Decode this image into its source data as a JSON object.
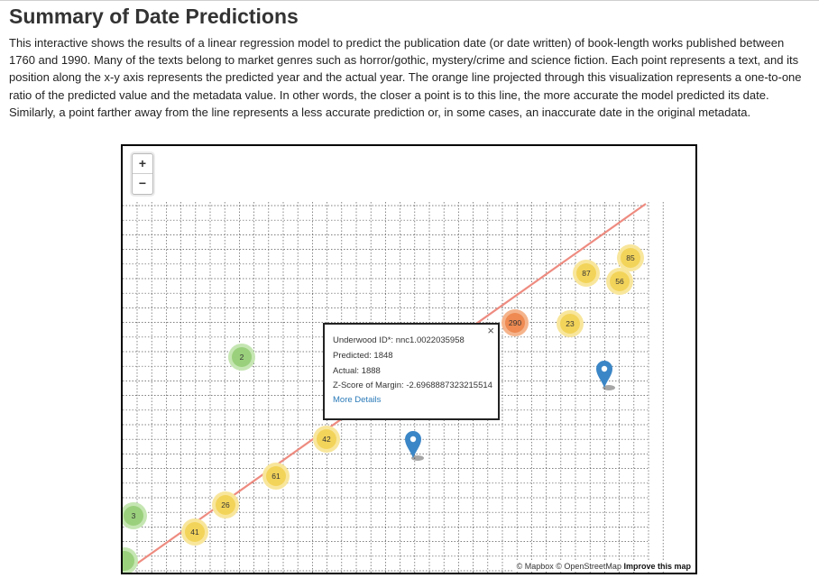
{
  "header": {
    "title": "Summary of Date Predictions",
    "intro": "This interactive shows the results of a linear regression model to predict the publication date (or date written) of book-length works published between 1760 and 1990. Many of the texts belong to market genres such as horror/gothic, mystery/crime and science fiction. Each point represents a text, and its position along the x-y axis represents the predicted year and the actual year. The orange line projected through this visualization represents a one-to-one ratio of the predicted value and the metadata value. In other words, the closer a point is to this line, the more accurate the model predicted its date. Similarly, a point farther away from the line represents a less accurate prediction or, in some cases, an inaccurate date in the original metadata."
  },
  "map": {
    "zoom_in_label": "+",
    "zoom_out_label": "−",
    "line_color": "#ee8b80",
    "clusters": [
      {
        "label": "85",
        "color": "yellow"
      },
      {
        "label": "87",
        "color": "yellow"
      },
      {
        "label": "56",
        "color": "yellow"
      },
      {
        "label": "290",
        "color": "orange"
      },
      {
        "label": "23",
        "color": "yellow"
      },
      {
        "label": "2",
        "color": "green"
      },
      {
        "label": "42",
        "color": "yellow"
      },
      {
        "label": "61",
        "color": "yellow"
      },
      {
        "label": "26",
        "color": "yellow"
      },
      {
        "label": "3",
        "color": "green"
      },
      {
        "label": "41",
        "color": "yellow"
      },
      {
        "label": "",
        "color": "green"
      }
    ],
    "markers": [
      {
        "name": "marker-pin-right",
        "color": "#3b86c6"
      },
      {
        "name": "marker-pin-center",
        "color": "#3b86c6"
      }
    ],
    "popup": {
      "close": "×",
      "id_label": "Underwood ID*: ",
      "id_value": "nnc1.0022035958",
      "predicted_label": "Predicted: ",
      "predicted_value": "1848",
      "actual_label": "Actual: ",
      "actual_value": "1888",
      "z_label": "Z-Score of Margin: ",
      "z_value": "-2.6968887323215514",
      "more": "More Details"
    },
    "attribution": {
      "text": "© Mapbox © OpenStreetMap",
      "improve": "Improve this map"
    }
  },
  "colors": {
    "green_inner": "#9ad07c",
    "green_outer": "#c5e6b2",
    "yellow_inner": "#f3d45a",
    "yellow_outer": "#f8e69c",
    "orange_inner": "#ee8a52",
    "orange_outer": "#f5b48c"
  }
}
